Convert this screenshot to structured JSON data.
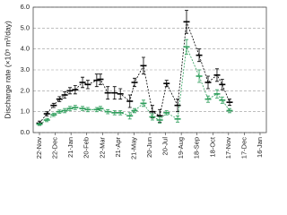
{
  "chart_data": {
    "type": "line",
    "y_label": "Discharge rate (×10⁵ m³/day)",
    "x": [
      0,
      14,
      27,
      38,
      48,
      58,
      68,
      82,
      92,
      109,
      116,
      130,
      143,
      154,
      172,
      181,
      198,
      215,
      229,
      242,
      263,
      280,
      304,
      321,
      338,
      348,
      362
    ],
    "series": [
      {
        "color": "#000000",
        "values": [
          0.45,
          0.9,
          1.3,
          1.6,
          1.8,
          2.0,
          2.05,
          2.4,
          2.3,
          2.5,
          2.55,
          1.9,
          1.9,
          1.85,
          1.5,
          2.4,
          3.2,
          1.0,
          0.8,
          2.35,
          1.3,
          5.3,
          3.7,
          2.4,
          2.75,
          2.3,
          1.45
        ],
        "errors": [
          0.1,
          0.1,
          0.1,
          0.12,
          0.15,
          0.15,
          0.2,
          0.25,
          0.2,
          0.3,
          0.25,
          0.3,
          0.3,
          0.25,
          0.3,
          0.2,
          0.4,
          0.3,
          0.3,
          0.15,
          0.3,
          0.55,
          0.3,
          0.3,
          0.3,
          0.25,
          0.15
        ]
      },
      {
        "color": "#2e9e5b",
        "values": [
          0.4,
          0.6,
          0.85,
          1.0,
          1.05,
          1.15,
          1.2,
          1.15,
          1.1,
          1.1,
          1.15,
          1.0,
          0.95,
          0.95,
          0.8,
          1.05,
          1.4,
          0.75,
          0.6,
          0.95,
          0.65,
          4.1,
          2.7,
          1.6,
          1.85,
          1.55,
          1.05
        ],
        "errors": [
          0.05,
          0.08,
          0.08,
          0.08,
          0.1,
          0.1,
          0.1,
          0.1,
          0.1,
          0.1,
          0.1,
          0.1,
          0.1,
          0.1,
          0.15,
          0.1,
          0.15,
          0.15,
          0.15,
          0.1,
          0.15,
          0.35,
          0.3,
          0.15,
          0.2,
          0.15,
          0.1
        ]
      }
    ],
    "xlim": [
      -12,
      432
    ],
    "xticks": [
      {
        "value": 0,
        "label": "22-Nov"
      },
      {
        "value": 30,
        "label": "22-Dec"
      },
      {
        "value": 60,
        "label": "21-Jan"
      },
      {
        "value": 90,
        "label": "20-Feb"
      },
      {
        "value": 120,
        "label": "22-Mar"
      },
      {
        "value": 150,
        "label": "21-Apr"
      },
      {
        "value": 180,
        "label": "21-May"
      },
      {
        "value": 210,
        "label": "20-Jun"
      },
      {
        "value": 240,
        "label": "20-Jul"
      },
      {
        "value": 270,
        "label": "19-Aug"
      },
      {
        "value": 300,
        "label": "18-Sep"
      },
      {
        "value": 330,
        "label": "18-Oct"
      },
      {
        "value": 360,
        "label": "17-Nov"
      },
      {
        "value": 390,
        "label": "17-Dec"
      },
      {
        "value": 420,
        "label": "16-Jan"
      }
    ],
    "ylim": [
      0,
      6
    ],
    "yticks": [
      {
        "value": 0,
        "label": "0.0"
      },
      {
        "value": 1,
        "label": "1.0"
      },
      {
        "value": 2,
        "label": "2.0"
      },
      {
        "value": 3,
        "label": "3.0"
      },
      {
        "value": 4,
        "label": "4.0"
      },
      {
        "value": 5,
        "label": "5.0"
      },
      {
        "value": 6,
        "label": "6.0"
      }
    ],
    "grid": true
  }
}
